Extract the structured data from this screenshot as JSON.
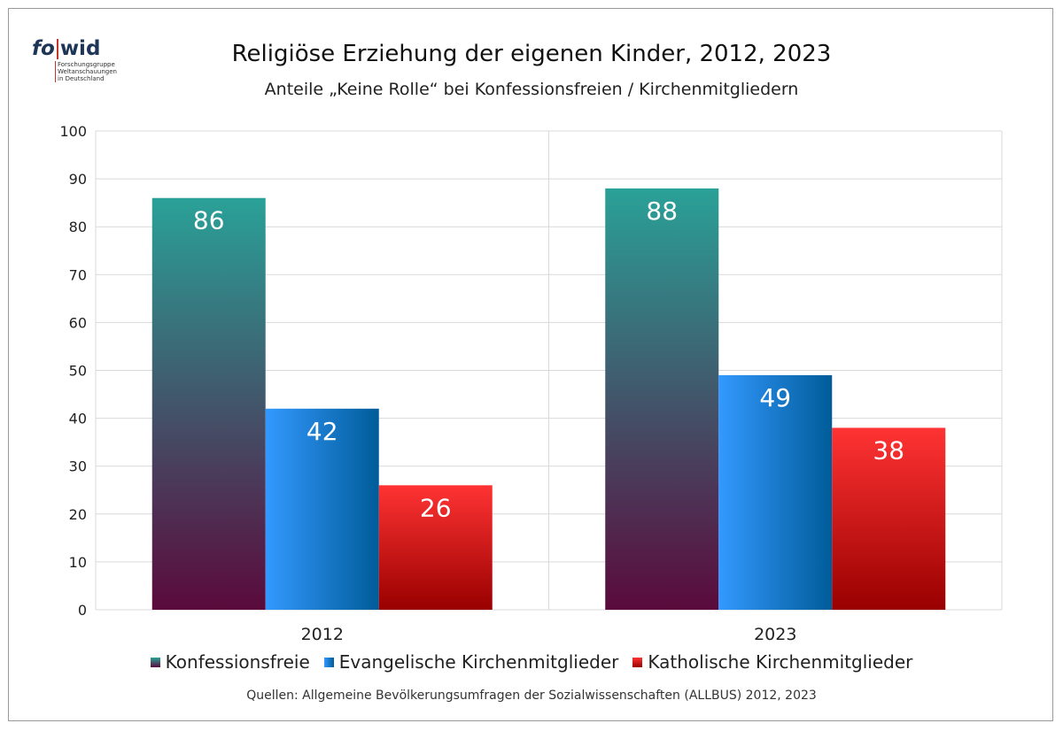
{
  "logo": {
    "text_left": "fo",
    "text_right": "wid",
    "subtitle_lines": [
      "Forschungsgruppe",
      "Weltanschauungen",
      "in Deutschland"
    ]
  },
  "title": "Religiöse Erziehung der eigenen Kinder, 2012, 2023",
  "subtitle": "Anteile „Keine Rolle“ bei Konfessionsfreien / Kirchenmitgliedern",
  "source": "Quellen: Allgemeine Bevölkerungsumfragen der Sozialwissenschaften (ALLBUS) 2012, 2023",
  "colors": {
    "konfessionsfreie_top": "#2aa198",
    "konfessionsfreie_bottom": "#5a0a3c",
    "evangelisch_left": "#3399ff",
    "evangelisch_right": "#005c99",
    "katholisch_top": "#ff3333",
    "katholisch_bottom": "#990000",
    "grid": "#d9d9d9",
    "label": "#ffffff"
  },
  "chart_data": {
    "type": "bar",
    "title": "Religiöse Erziehung der eigenen Kinder, 2012, 2023",
    "subtitle": "Anteile „Keine Rolle“ bei Konfessionsfreien / Kirchenmitgliedern",
    "categories": [
      "2012",
      "2023"
    ],
    "series": [
      {
        "name": "Konfessionsfreie",
        "values": [
          86,
          88
        ]
      },
      {
        "name": "Evangelische Kirchenmitglieder",
        "values": [
          42,
          49
        ]
      },
      {
        "name": "Katholische Kirchenmitglieder",
        "values": [
          26,
          38
        ]
      }
    ],
    "ylim": [
      0,
      100
    ],
    "yticks": [
      "0",
      "10",
      "20",
      "30",
      "40",
      "50",
      "60",
      "70",
      "80",
      "90",
      "100"
    ],
    "grid": true,
    "legend_position": "bottom",
    "data_labels": true
  }
}
